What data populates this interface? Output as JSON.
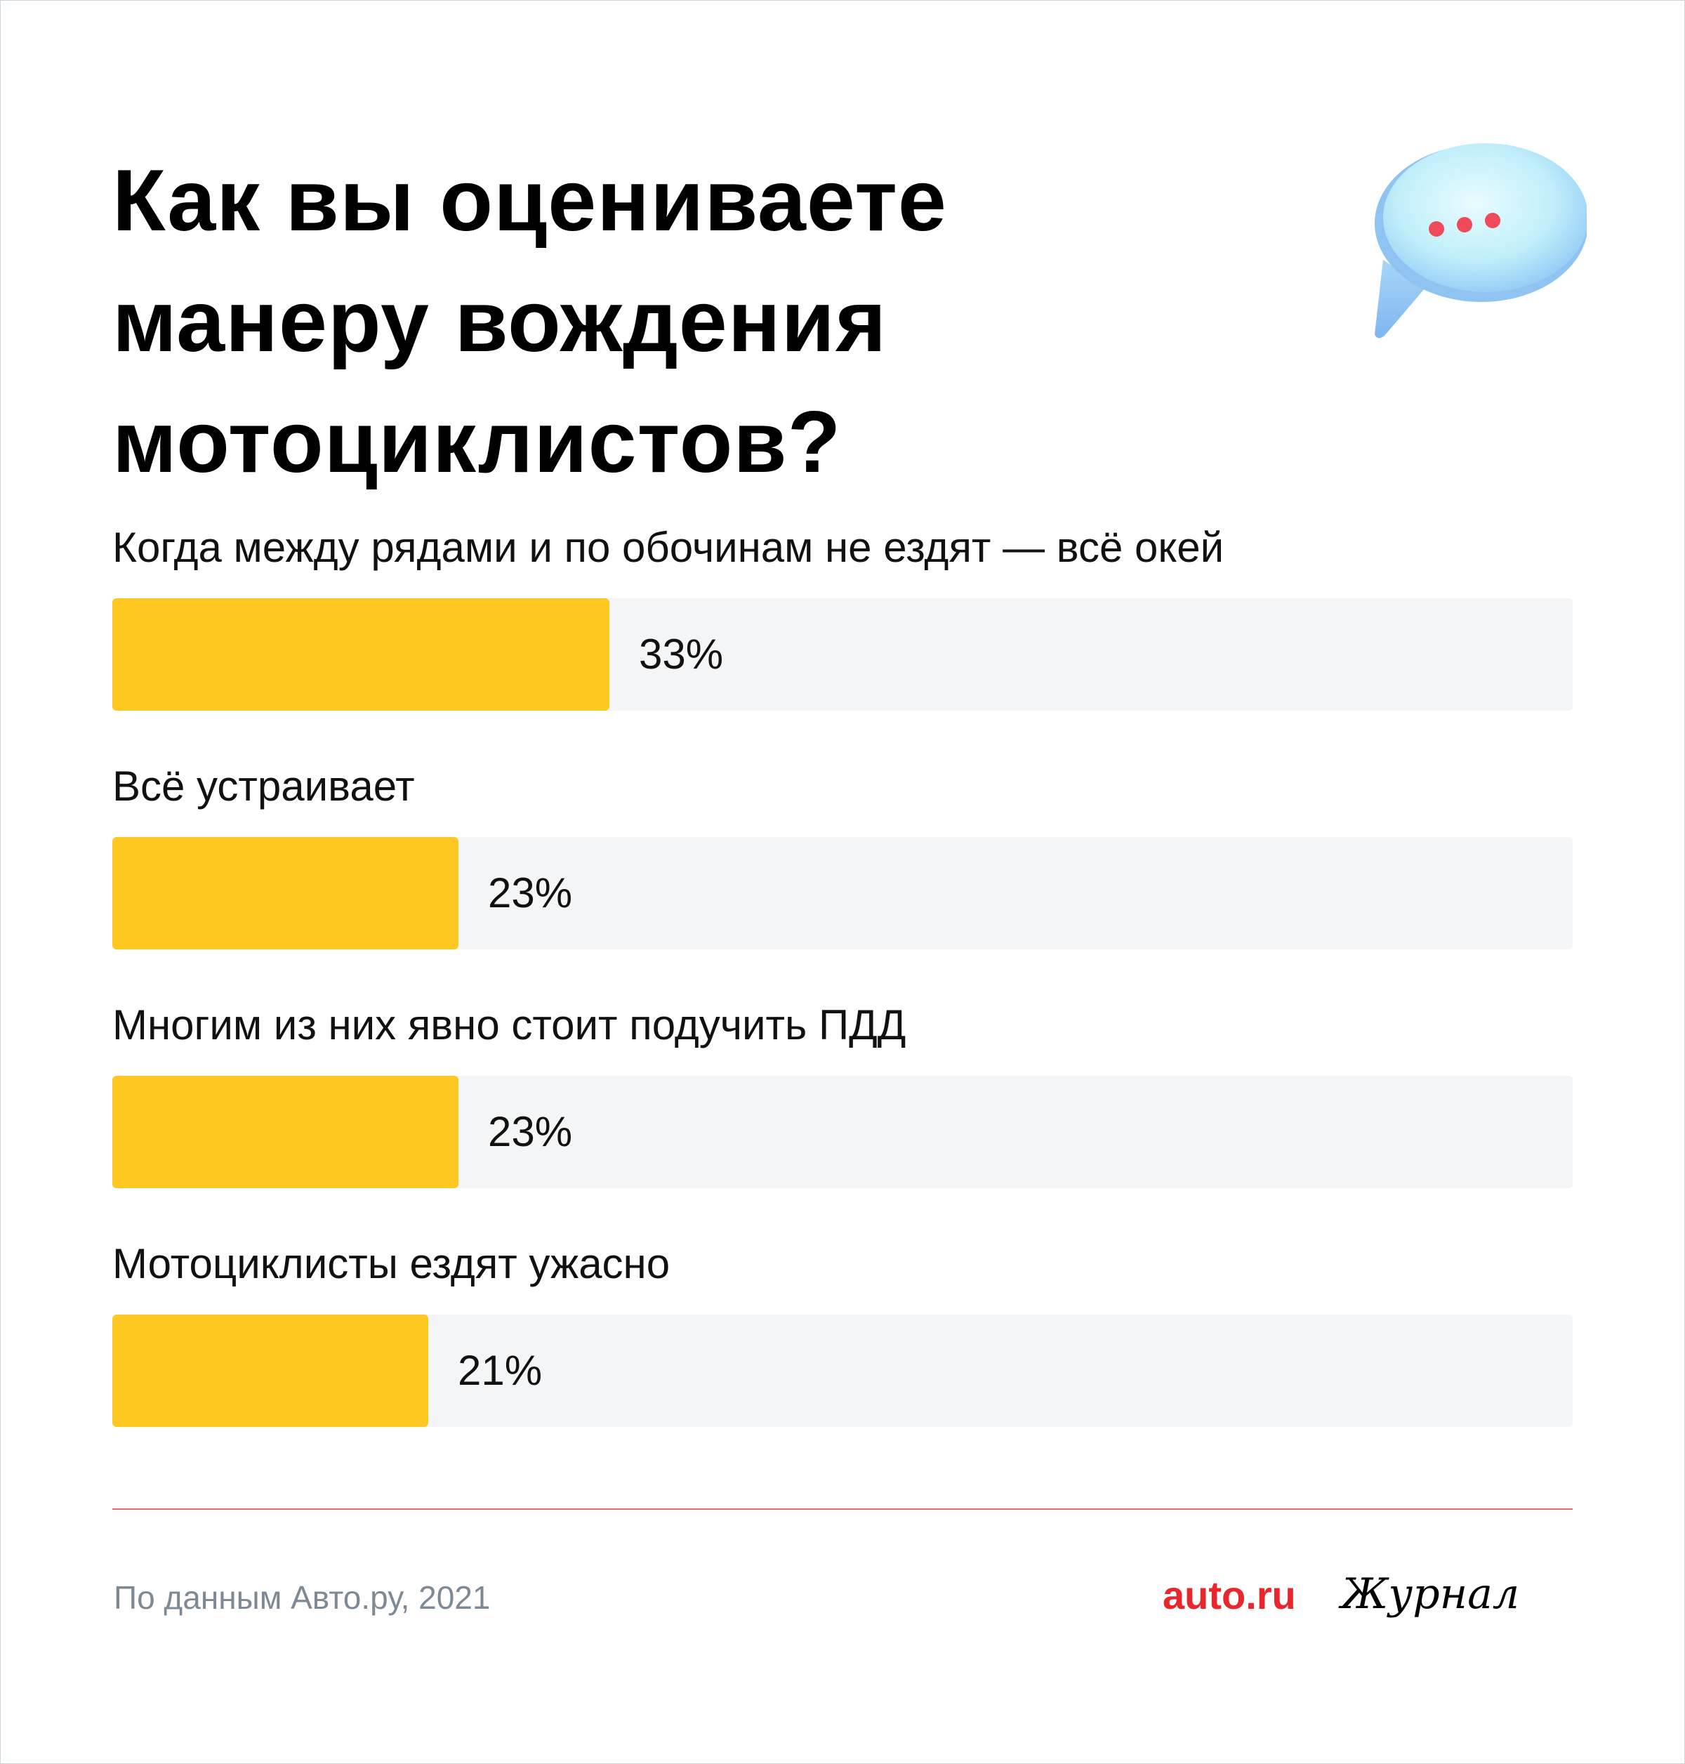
{
  "title": "Как вы оцениваете\nманеру вождения\nмотоциклистов?",
  "source": "По данным Авто.ру, 2021",
  "brand": {
    "auto": "auto.ru",
    "journal": "Журнал"
  },
  "colors": {
    "bar": "#fec722",
    "track": "#f4f5f6",
    "accent": "#e8262b",
    "divider": "#e36a6a",
    "source": "#7d8a96"
  },
  "icons": {
    "bubble": "speech-bubble-icon"
  },
  "chart_data": {
    "type": "bar",
    "orientation": "horizontal",
    "title": "Как вы оцениваете манеру вождения мотоциклистов?",
    "categories": [
      "Когда между рядами и по обочинам не ездят — всё окей",
      "Всё устраивает",
      "Многим из них явно стоит подучить ПДД",
      "Мотоциклисты ездят ужасно"
    ],
    "values": [
      33,
      23,
      23,
      21
    ],
    "value_labels": [
      "33%",
      "23%",
      "23%",
      "21%"
    ],
    "xlim": [
      0,
      97
    ],
    "unit": "%"
  }
}
